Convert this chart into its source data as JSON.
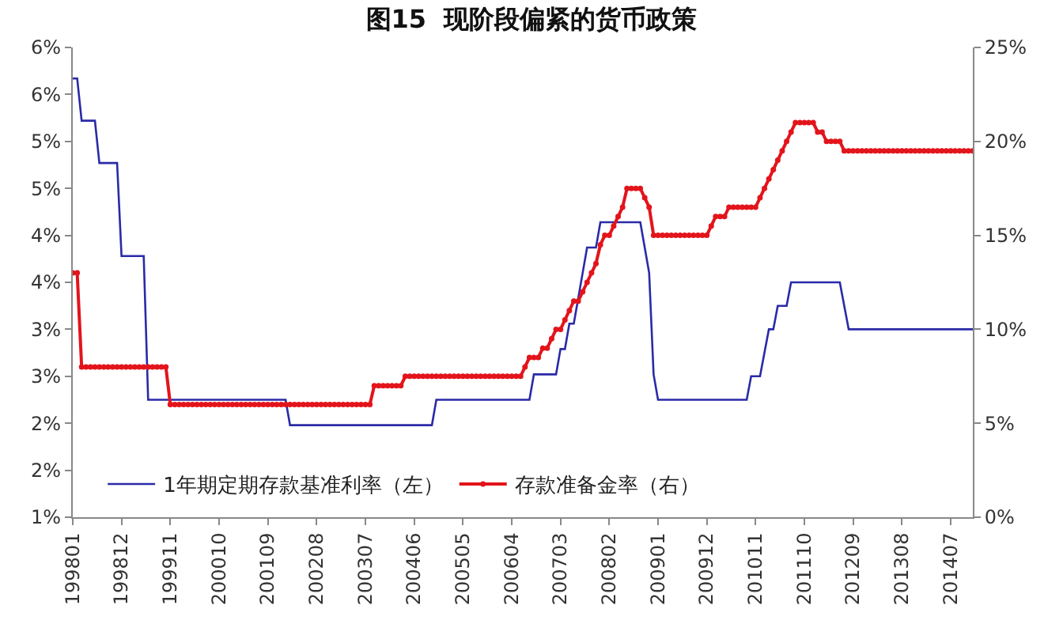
{
  "chart_data": {
    "type": "line",
    "title": "图15  现阶段偏紧的货币政策",
    "categories": [
      "199801",
      null,
      null,
      null,
      null,
      null,
      null,
      null,
      null,
      null,
      null,
      "199812",
      null,
      null,
      null,
      null,
      null,
      null,
      null,
      null,
      null,
      null,
      "199911",
      null,
      null,
      null,
      null,
      null,
      null,
      null,
      null,
      null,
      null,
      "200010",
      null,
      null,
      null,
      null,
      null,
      null,
      null,
      null,
      null,
      null,
      "200109",
      null,
      null,
      null,
      null,
      null,
      null,
      null,
      null,
      null,
      null,
      "200208",
      null,
      null,
      null,
      null,
      null,
      null,
      null,
      null,
      null,
      null,
      "200307",
      null,
      null,
      null,
      null,
      null,
      null,
      null,
      null,
      null,
      null,
      "200406",
      null,
      null,
      null,
      null,
      null,
      null,
      null,
      null,
      null,
      null,
      "200505",
      null,
      null,
      null,
      null,
      null,
      null,
      null,
      null,
      null,
      null,
      "200604",
      null,
      null,
      null,
      null,
      null,
      null,
      null,
      null,
      null,
      null,
      "200703",
      null,
      null,
      null,
      null,
      null,
      null,
      null,
      null,
      null,
      null,
      "200802",
      null,
      null,
      null,
      null,
      null,
      null,
      null,
      null,
      null,
      null,
      "200901",
      null,
      null,
      null,
      null,
      null,
      null,
      null,
      null,
      null,
      null,
      "200912",
      null,
      null,
      null,
      null,
      null,
      null,
      null,
      null,
      null,
      null,
      "201011",
      null,
      null,
      null,
      null,
      null,
      null,
      null,
      null,
      null,
      null,
      "201110",
      null,
      null,
      null,
      null,
      null,
      null,
      null,
      null,
      null,
      null,
      "201209",
      null,
      null,
      null,
      null,
      null,
      null,
      null,
      null,
      null,
      null,
      "201308",
      null,
      null,
      null,
      null,
      null,
      null,
      null,
      null,
      null,
      null,
      "201407",
      null,
      null,
      null,
      null,
      null
    ],
    "series": [
      {
        "name": "1年期定期存款基准利率（左）",
        "color": "#2a2aa8",
        "marker": "none",
        "values": [
          5.67,
          5.67,
          5.22,
          5.22,
          5.22,
          5.22,
          4.77,
          4.77,
          4.77,
          4.77,
          4.77,
          3.78,
          3.78,
          3.78,
          3.78,
          3.78,
          3.78,
          2.25,
          2.25,
          2.25,
          2.25,
          2.25,
          2.25,
          2.25,
          2.25,
          2.25,
          2.25,
          2.25,
          2.25,
          2.25,
          2.25,
          2.25,
          2.25,
          2.25,
          2.25,
          2.25,
          2.25,
          2.25,
          2.25,
          2.25,
          2.25,
          2.25,
          2.25,
          2.25,
          2.25,
          2.25,
          2.25,
          2.25,
          2.25,
          1.98,
          1.98,
          1.98,
          1.98,
          1.98,
          1.98,
          1.98,
          1.98,
          1.98,
          1.98,
          1.98,
          1.98,
          1.98,
          1.98,
          1.98,
          1.98,
          1.98,
          1.98,
          1.98,
          1.98,
          1.98,
          1.98,
          1.98,
          1.98,
          1.98,
          1.98,
          1.98,
          1.98,
          1.98,
          1.98,
          1.98,
          1.98,
          1.98,
          2.25,
          2.25,
          2.25,
          2.25,
          2.25,
          2.25,
          2.25,
          2.25,
          2.25,
          2.25,
          2.25,
          2.25,
          2.25,
          2.25,
          2.25,
          2.25,
          2.25,
          2.25,
          2.25,
          2.25,
          2.25,
          2.25,
          2.52,
          2.52,
          2.52,
          2.52,
          2.52,
          2.52,
          2.79,
          2.79,
          3.06,
          3.06,
          3.33,
          3.6,
          3.87,
          3.87,
          3.87,
          4.14,
          4.14,
          4.14,
          4.14,
          4.14,
          4.14,
          4.14,
          4.14,
          4.14,
          4.14,
          3.87,
          3.6,
          2.52,
          2.25,
          2.25,
          2.25,
          2.25,
          2.25,
          2.25,
          2.25,
          2.25,
          2.25,
          2.25,
          2.25,
          2.25,
          2.25,
          2.25,
          2.25,
          2.25,
          2.25,
          2.25,
          2.25,
          2.25,
          2.25,
          2.5,
          2.5,
          2.5,
          2.75,
          3,
          3,
          3.25,
          3.25,
          3.25,
          3.5,
          3.5,
          3.5,
          3.5,
          3.5,
          3.5,
          3.5,
          3.5,
          3.5,
          3.5,
          3.5,
          3.5,
          3.25,
          3,
          3,
          3,
          3,
          3,
          3,
          3,
          3,
          3,
          3,
          3,
          3,
          3,
          3,
          3,
          3,
          3,
          3,
          3,
          3,
          3,
          3,
          3,
          3,
          3,
          3,
          3,
          3,
          3
        ]
      },
      {
        "name": "存款准备金率（右）",
        "color": "#e3141b",
        "marker": "circle",
        "axis": "y2",
        "values": [
          13,
          13,
          8,
          8,
          8,
          8,
          8,
          8,
          8,
          8,
          8,
          8,
          8,
          8,
          8,
          8,
          8,
          8,
          8,
          8,
          8,
          8,
          6,
          6,
          6,
          6,
          6,
          6,
          6,
          6,
          6,
          6,
          6,
          6,
          6,
          6,
          6,
          6,
          6,
          6,
          6,
          6,
          6,
          6,
          6,
          6,
          6,
          6,
          6,
          6,
          6,
          6,
          6,
          6,
          6,
          6,
          6,
          6,
          6,
          6,
          6,
          6,
          6,
          6,
          6,
          6,
          6,
          6,
          7,
          7,
          7,
          7,
          7,
          7,
          7,
          7.5,
          7.5,
          7.5,
          7.5,
          7.5,
          7.5,
          7.5,
          7.5,
          7.5,
          7.5,
          7.5,
          7.5,
          7.5,
          7.5,
          7.5,
          7.5,
          7.5,
          7.5,
          7.5,
          7.5,
          7.5,
          7.5,
          7.5,
          7.5,
          7.5,
          7.5,
          7.5,
          8,
          8.5,
          8.5,
          8.5,
          9,
          9,
          9.5,
          10,
          10,
          10.5,
          11,
          11.5,
          11.5,
          12,
          12.5,
          13,
          13.5,
          14.5,
          15,
          15,
          15.5,
          16,
          16.5,
          17.5,
          17.5,
          17.5,
          17.5,
          17,
          16.5,
          15,
          15,
          15,
          15,
          15,
          15,
          15,
          15,
          15,
          15,
          15,
          15,
          15,
          15.5,
          16,
          16,
          16,
          16.5,
          16.5,
          16.5,
          16.5,
          16.5,
          16.5,
          16.5,
          17,
          17.5,
          18,
          18.5,
          19,
          19.5,
          20,
          20.5,
          21,
          21,
          21,
          21,
          21,
          20.5,
          20.5,
          20,
          20,
          20,
          20,
          19.5,
          19.5,
          19.5,
          19.5,
          19.5,
          19.5,
          19.5,
          19.5,
          19.5,
          19.5,
          19.5,
          19.5,
          19.5,
          19.5,
          19.5,
          19.5,
          19.5,
          19.5,
          19.5,
          19.5,
          19.5,
          19.5,
          19.5,
          19.5,
          19.5,
          19.5,
          19.5,
          19.5,
          19.5,
          19.5
        ]
      }
    ],
    "ylim": [
      1,
      6
    ],
    "yticks": [
      {
        "value": 1,
        "label": "1%"
      },
      {
        "value": 1.5,
        "label": "2%"
      },
      {
        "value": 2,
        "label": "2%"
      },
      {
        "value": 2.5,
        "label": "3%"
      },
      {
        "value": 3,
        "label": "3%"
      },
      {
        "value": 3.5,
        "label": "4%"
      },
      {
        "value": 4,
        "label": "4%"
      },
      {
        "value": 4.5,
        "label": "5%"
      },
      {
        "value": 5,
        "label": "5%"
      },
      {
        "value": 5.5,
        "label": "6%"
      },
      {
        "value": 6,
        "label": "6%"
      }
    ],
    "y2lim": [
      0,
      25
    ],
    "y2ticks": [
      {
        "value": 0,
        "label": "0%"
      },
      {
        "value": 5,
        "label": "5%"
      },
      {
        "value": 10,
        "label": "10%"
      },
      {
        "value": 15,
        "label": "15%"
      },
      {
        "value": 20,
        "label": "20%"
      },
      {
        "value": 25,
        "label": "25%"
      }
    ],
    "legend": "bottom",
    "grid": false
  }
}
